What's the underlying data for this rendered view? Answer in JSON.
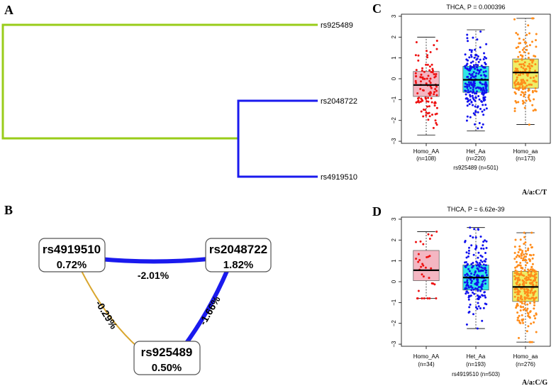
{
  "panels": {
    "a": {
      "letter": "A",
      "tree": {
        "leaves": [
          "rs925489",
          "rs2048722",
          "rs4919510"
        ],
        "colors": {
          "outer": "#99cc1a",
          "inner": "#1a1aee"
        }
      }
    },
    "b": {
      "letter": "B",
      "nodes": [
        {
          "name": "rs4919510",
          "value": "0.72%"
        },
        {
          "name": "rs2048722",
          "value": "1.82%"
        },
        {
          "name": "rs925489",
          "value": "0.50%"
        }
      ],
      "edges": [
        {
          "label": "-2.01%",
          "color": "#1a1aee"
        },
        {
          "label": "-0.29%",
          "color": "#d9a62e"
        },
        {
          "label": "-1.66%",
          "color": "#1a1aee"
        }
      ]
    },
    "c": {
      "letter": "C",
      "corner_label": "A/a:C/T"
    },
    "d": {
      "letter": "D",
      "corner_label": "A/a:C/G"
    }
  },
  "chart_data": [
    {
      "type": "boxplot",
      "title": "THCA, P = 0.000396",
      "xlabel": "rs925489 (n=501)",
      "ylim": [
        -3.1,
        3.1
      ],
      "yticks": [
        -3,
        -2,
        -1,
        0,
        1,
        2,
        3
      ],
      "categories": [
        {
          "name": "Homo_AA",
          "n": "(n=108)",
          "color": "#f4b6c2",
          "point_color": "#ee1111",
          "q1": -0.85,
          "median": -0.3,
          "q3": 0.35,
          "whisker_low": -2.7,
          "whisker_high": 2.0,
          "count": 108
        },
        {
          "name": "Het_Aa",
          "n": "(n=220)",
          "color": "#2ee6e6",
          "point_color": "#1111ee",
          "q1": -0.65,
          "median": -0.05,
          "q3": 0.6,
          "whisker_low": -2.5,
          "whisker_high": 2.35,
          "count": 220
        },
        {
          "name": "Homo_aa",
          "n": "(n=173)",
          "color": "#eeee66",
          "point_color": "#ff8c1a",
          "q1": -0.45,
          "median": 0.3,
          "q3": 0.95,
          "whisker_low": -2.2,
          "whisker_high": 2.9,
          "count": 173
        }
      ]
    },
    {
      "type": "boxplot",
      "title": "THCA, P = 6.62e-39",
      "xlabel": "rs4919510 (n=503)",
      "ylim": [
        -3.1,
        3.1
      ],
      "yticks": [
        -3,
        -2,
        -1,
        0,
        1,
        2,
        3
      ],
      "categories": [
        {
          "name": "Homo_AA",
          "n": "(n=34)",
          "color": "#f4b6c2",
          "point_color": "#ee1111",
          "q1": 0.05,
          "median": 0.55,
          "q3": 1.5,
          "whisker_low": -0.8,
          "whisker_high": 2.4,
          "count": 34
        },
        {
          "name": "Het_Aa",
          "n": "(n=193)",
          "color": "#2ee6e6",
          "point_color": "#1111ee",
          "q1": -0.4,
          "median": 0.2,
          "q3": 0.8,
          "whisker_low": -2.25,
          "whisker_high": 2.6,
          "count": 193
        },
        {
          "name": "Homo_aa",
          "n": "(n=276)",
          "color": "#eeee66",
          "point_color": "#ff8c1a",
          "q1": -0.95,
          "median": -0.25,
          "q3": 0.5,
          "whisker_low": -2.9,
          "whisker_high": 2.35,
          "count": 276
        }
      ]
    }
  ]
}
